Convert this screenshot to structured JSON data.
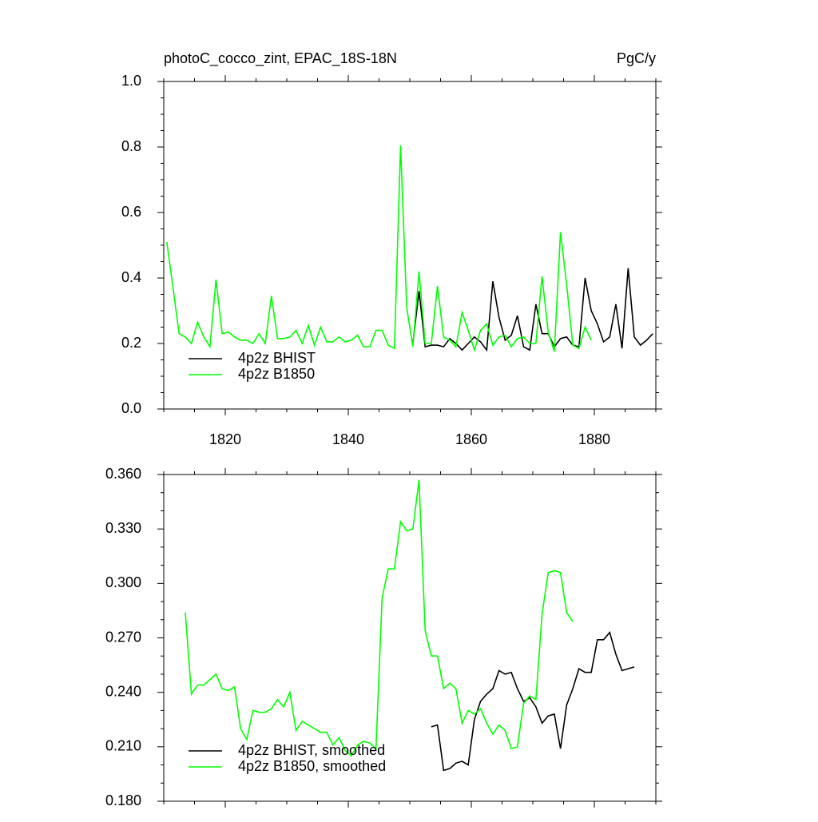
{
  "chart_data": [
    {
      "type": "line",
      "title": "photoC_cocco_zint, EPAC_18S-18N",
      "units": "PgC/y",
      "xlim": [
        1810,
        1890
      ],
      "xticks": [
        1820,
        1840,
        1860,
        1880
      ],
      "xtick_labels": true,
      "ylim": [
        0,
        1
      ],
      "yticks": [
        {
          "value": 0,
          "label": "0.0"
        },
        0.2,
        0.4,
        0.6,
        0.8,
        {
          "value": 1,
          "label": "1.0"
        }
      ],
      "legend": "lower left",
      "series": [
        {
          "name": "4p2z BHIST",
          "color": "#000000",
          "x": [
            1850.5,
            1851.5,
            1852.5,
            1853.5,
            1854.5,
            1855.5,
            1856.5,
            1857.5,
            1858.5,
            1859.5,
            1860.5,
            1861.5,
            1862.5,
            1863.5,
            1864.5,
            1865.5,
            1866.5,
            1867.5,
            1868.5,
            1869.5,
            1870.5,
            1871.5,
            1872.5,
            1873.5,
            1874.5,
            1875.5,
            1876.5,
            1877.5,
            1878.5,
            1879.5,
            1880.5,
            1881.5,
            1882.5,
            1883.5,
            1884.5,
            1885.5,
            1886.5,
            1887.5,
            1888.5,
            1889.5
          ],
          "values": [
            0.2,
            0.36,
            0.19,
            0.195,
            0.195,
            0.19,
            0.215,
            0.2,
            0.18,
            0.2,
            0.22,
            0.205,
            0.18,
            0.39,
            0.28,
            0.21,
            0.225,
            0.285,
            0.19,
            0.18,
            0.32,
            0.23,
            0.23,
            0.19,
            0.215,
            0.22,
            0.195,
            0.19,
            0.4,
            0.3,
            0.26,
            0.205,
            0.22,
            0.32,
            0.185,
            0.43,
            0.22,
            0.195,
            0.21,
            0.23
          ]
        },
        {
          "name": "4p2z B1850",
          "color": "#00ff00",
          "x": [
            1810.5,
            1811.5,
            1812.5,
            1813.5,
            1814.5,
            1815.5,
            1816.5,
            1817.5,
            1818.5,
            1819.5,
            1820.5,
            1821.5,
            1822.5,
            1823.5,
            1824.5,
            1825.5,
            1826.5,
            1827.5,
            1828.5,
            1829.5,
            1830.5,
            1831.5,
            1832.5,
            1833.5,
            1834.5,
            1835.5,
            1836.5,
            1837.5,
            1838.5,
            1839.5,
            1840.5,
            1841.5,
            1842.5,
            1843.5,
            1844.5,
            1845.5,
            1846.5,
            1847.5,
            1848.5,
            1849.5,
            1850.5,
            1851.5,
            1852.5,
            1853.5,
            1854.5,
            1855.5,
            1856.5,
            1857.5,
            1858.5,
            1859.5,
            1860.5,
            1861.5,
            1862.5,
            1863.5,
            1864.5,
            1865.5,
            1866.5,
            1867.5,
            1868.5,
            1869.5,
            1870.5,
            1871.5,
            1872.5,
            1873.5,
            1874.5,
            1875.5,
            1876.5,
            1877.5,
            1878.5,
            1879.5
          ],
          "values": [
            0.51,
            0.37,
            0.23,
            0.22,
            0.2,
            0.265,
            0.22,
            0.19,
            0.395,
            0.23,
            0.235,
            0.22,
            0.21,
            0.21,
            0.2,
            0.23,
            0.2,
            0.345,
            0.215,
            0.215,
            0.22,
            0.24,
            0.2,
            0.255,
            0.195,
            0.25,
            0.205,
            0.205,
            0.22,
            0.205,
            0.21,
            0.225,
            0.19,
            0.19,
            0.24,
            0.24,
            0.195,
            0.185,
            0.805,
            0.31,
            0.19,
            0.42,
            0.2,
            0.2,
            0.375,
            0.22,
            0.21,
            0.19,
            0.295,
            0.24,
            0.18,
            0.24,
            0.26,
            0.195,
            0.22,
            0.225,
            0.19,
            0.215,
            0.22,
            0.2,
            0.2,
            0.405,
            0.235,
            0.175,
            0.54,
            0.38,
            0.195,
            0.185,
            0.25,
            0.21
          ]
        }
      ]
    },
    {
      "type": "line",
      "xlim": [
        1810,
        1890
      ],
      "xticks": [
        1820,
        1840,
        1860,
        1880
      ],
      "xtick_labels": false,
      "ylim": [
        0.18,
        0.36
      ],
      "yticks": [
        {
          "value": 0.18,
          "label": "0.180"
        },
        {
          "value": 0.21,
          "label": "0.210"
        },
        {
          "value": 0.24,
          "label": "0.240"
        },
        {
          "value": 0.27,
          "label": "0.270"
        },
        {
          "value": 0.3,
          "label": "0.300"
        },
        {
          "value": 0.33,
          "label": "0.330"
        },
        {
          "value": 0.36,
          "label": "0.360"
        }
      ],
      "legend": "lower left",
      "series": [
        {
          "name": "4p2z BHIST, smoothed",
          "color": "#000000",
          "x": [
            1853.5,
            1854.5,
            1855.5,
            1856.5,
            1857.5,
            1858.5,
            1859.5,
            1860.5,
            1861.5,
            1862.5,
            1863.5,
            1864.5,
            1865.5,
            1866.5,
            1867.5,
            1868.5,
            1869.5,
            1870.5,
            1871.5,
            1872.5,
            1873.5,
            1874.5,
            1875.5,
            1876.5,
            1877.5,
            1878.5,
            1879.5,
            1880.5,
            1881.5,
            1882.5,
            1883.5,
            1884.5,
            1885.5,
            1886.5
          ],
          "values": [
            0.221,
            0.222,
            0.197,
            0.198,
            0.201,
            0.202,
            0.2,
            0.225,
            0.235,
            0.239,
            0.242,
            0.252,
            0.25,
            0.251,
            0.242,
            0.235,
            0.237,
            0.232,
            0.223,
            0.227,
            0.228,
            0.209,
            0.233,
            0.242,
            0.253,
            0.251,
            0.251,
            0.269,
            0.269,
            0.273,
            0.261,
            0.252,
            0.253,
            0.254
          ]
        },
        {
          "name": "4p2z B1850, smoothed",
          "color": "#00ff00",
          "x": [
            1813.5,
            1814.5,
            1815.5,
            1816.5,
            1817.5,
            1818.5,
            1819.5,
            1820.5,
            1821.5,
            1822.5,
            1823.5,
            1824.5,
            1825.5,
            1826.5,
            1827.5,
            1828.5,
            1829.5,
            1830.5,
            1831.5,
            1832.5,
            1833.5,
            1834.5,
            1835.5,
            1836.5,
            1837.5,
            1838.5,
            1839.5,
            1840.5,
            1841.5,
            1842.5,
            1843.5,
            1844.5,
            1845.5,
            1846.5,
            1847.5,
            1848.5,
            1849.5,
            1850.5,
            1851.5,
            1852.5,
            1853.5,
            1854.5,
            1855.5,
            1856.5,
            1857.5,
            1858.5,
            1859.5,
            1860.5,
            1861.5,
            1862.5,
            1863.5,
            1864.5,
            1865.5,
            1866.5,
            1867.5,
            1868.5,
            1869.5,
            1870.5,
            1871.5,
            1872.5,
            1873.5,
            1874.5,
            1875.5,
            1876.5
          ],
          "values": [
            0.284,
            0.239,
            0.244,
            0.244,
            0.247,
            0.25,
            0.242,
            0.241,
            0.243,
            0.22,
            0.214,
            0.23,
            0.229,
            0.229,
            0.231,
            0.236,
            0.232,
            0.24,
            0.219,
            0.224,
            0.222,
            0.22,
            0.218,
            0.218,
            0.211,
            0.215,
            0.208,
            0.205,
            0.211,
            0.213,
            0.212,
            0.209,
            0.292,
            0.308,
            0.308,
            0.334,
            0.329,
            0.33,
            0.357,
            0.274,
            0.26,
            0.26,
            0.242,
            0.245,
            0.242,
            0.223,
            0.23,
            0.228,
            0.231,
            0.223,
            0.217,
            0.222,
            0.219,
            0.209,
            0.21,
            0.234,
            0.238,
            0.236,
            0.283,
            0.306,
            0.307,
            0.306,
            0.284,
            0.279
          ]
        }
      ]
    }
  ]
}
